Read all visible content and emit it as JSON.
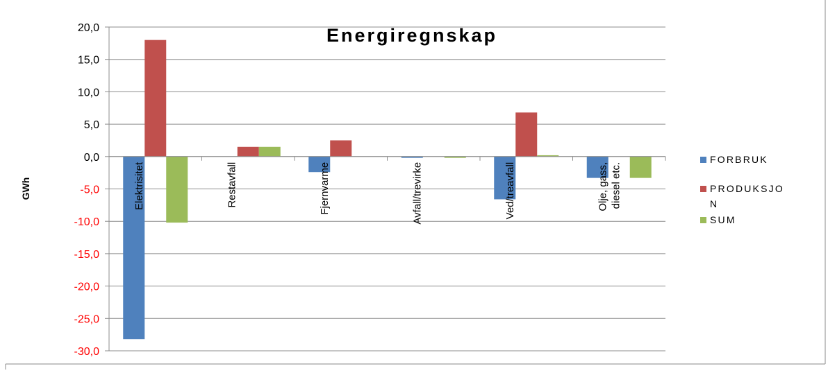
{
  "chart_data": {
    "type": "bar",
    "title": "Energiregnskap",
    "ylabel": "GWh",
    "xlabel": "",
    "categories": [
      [
        "Elektrisitet"
      ],
      [
        "Restavfall"
      ],
      [
        "Fjernvarme"
      ],
      [
        "Avfall/trevirke"
      ],
      [
        "Ved/treavfall"
      ],
      [
        "Olje, gass,",
        "diesel etc."
      ]
    ],
    "series": [
      {
        "name": "FORBRUK",
        "color": "#4F81BD",
        "values": [
          -28.2,
          0.0,
          -2.4,
          -0.2,
          -6.6,
          -3.3
        ]
      },
      {
        "name": "PRODUKSJON",
        "color": "#C0504D",
        "values": [
          18.0,
          1.5,
          2.5,
          0.0,
          6.8,
          0.0
        ]
      },
      {
        "name": "SUM",
        "color": "#9BBB59",
        "values": [
          -10.2,
          1.5,
          0.1,
          -0.2,
          0.2,
          -3.3
        ]
      }
    ],
    "legend_labels": [
      "FORBRUK",
      "PRODUKSJO\nN",
      "SUM"
    ],
    "ylim": [
      -30,
      20
    ],
    "yticks": [
      20,
      15,
      10,
      5,
      0,
      -5,
      -10,
      -15,
      -20,
      -25,
      -30
    ],
    "ytick_labels": [
      "20,0",
      "15,0",
      "10,0",
      "5,0",
      "0,0",
      "-5,0",
      "-10,0",
      "-15,0",
      "-20,0",
      "-25,0",
      "-30,0"
    ],
    "positive_tick_color": "#000000",
    "negative_tick_color": "#FF0000",
    "grid": true,
    "legend_position": "right"
  }
}
